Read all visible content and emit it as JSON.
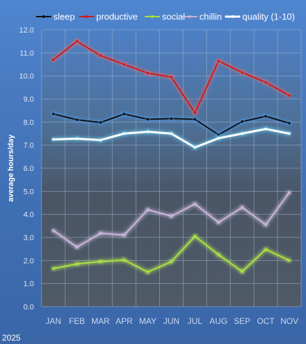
{
  "chart_data": {
    "type": "line",
    "title": "",
    "xlabel": "",
    "ylabel": "average hours/day",
    "footnote": "2025",
    "ylim": [
      0,
      12
    ],
    "yticks": [
      "0.0",
      "1.0",
      "2.0",
      "3.0",
      "4.0",
      "5.0",
      "6.0",
      "7.0",
      "8.0",
      "9.0",
      "10.0",
      "11.0",
      "12.0"
    ],
    "grid": true,
    "legend_position": "top",
    "categories": [
      "JAN",
      "FEB",
      "MAR",
      "APR",
      "MAY",
      "JUN",
      "JUL",
      "AUG",
      "SEP",
      "OCT",
      "NOV"
    ],
    "series": [
      {
        "name": "sleep",
        "color": "#111111",
        "glow": "#4da3ff",
        "values": [
          8.35,
          8.1,
          7.98,
          8.35,
          8.12,
          8.15,
          8.12,
          7.45,
          8.02,
          8.25,
          7.95
        ]
      },
      {
        "name": "productive",
        "color": "#cc1b1b",
        "glow": "#ff6a6a",
        "values": [
          10.7,
          11.5,
          10.88,
          10.5,
          10.12,
          9.95,
          8.4,
          10.65,
          10.15,
          9.72,
          9.15
        ]
      },
      {
        "name": "social",
        "color": "#a9e03a",
        "glow": "#c7ff5a",
        "values": [
          1.65,
          1.85,
          1.95,
          2.02,
          1.5,
          1.95,
          3.05,
          2.25,
          1.52,
          2.48,
          2.0
        ]
      },
      {
        "name": "chillin",
        "color": "#cbb3de",
        "glow": "#e2d2f0",
        "values": [
          3.3,
          2.58,
          3.18,
          3.1,
          4.2,
          3.92,
          4.45,
          3.65,
          4.3,
          3.55,
          4.95
        ]
      },
      {
        "name": "quality (1-10)",
        "color": "#ffffff",
        "glow": "#6ee0ff",
        "values": [
          7.25,
          7.28,
          7.22,
          7.5,
          7.58,
          7.5,
          6.9,
          7.3,
          7.5,
          7.7,
          7.5
        ]
      }
    ]
  }
}
